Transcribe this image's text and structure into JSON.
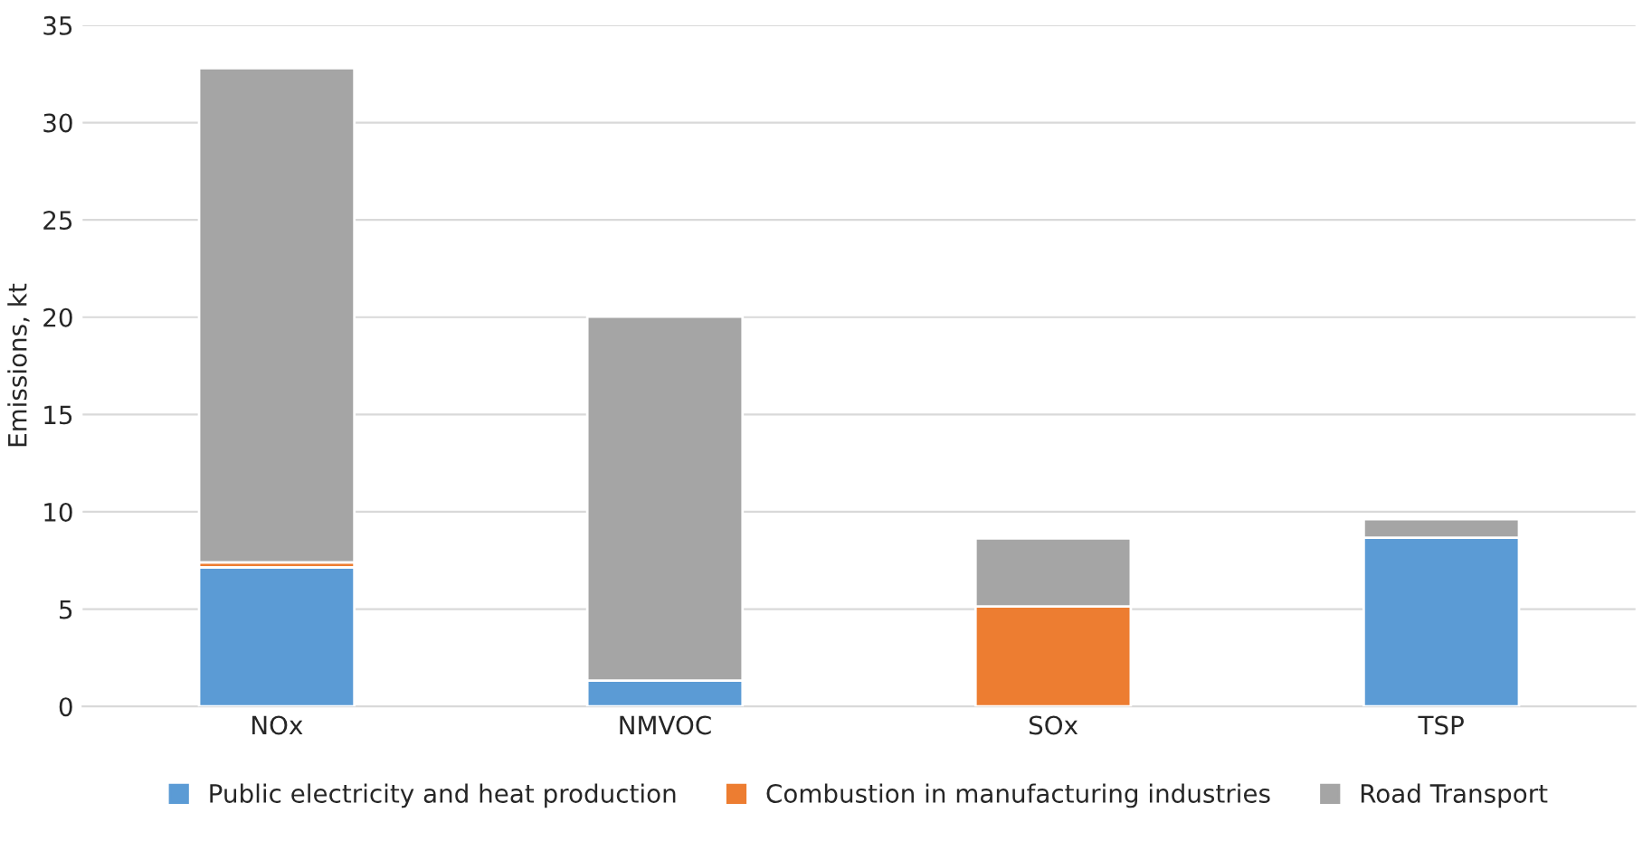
{
  "chart_data": {
    "type": "bar",
    "stacked": true,
    "ylabel": "Emissions, kt",
    "categories": [
      "NOx",
      "NMVOC",
      "SOx",
      "TSP"
    ],
    "series": [
      {
        "name": "Public electricity and heat production",
        "color": "#5b9bd5",
        "values": [
          7.15,
          1.33,
          0,
          8.67
        ]
      },
      {
        "name": "Combustion in manufacturing industries",
        "color": "#ed7d31",
        "values": [
          0.25,
          0,
          5.14,
          0
        ]
      },
      {
        "name": "Road Transport",
        "color": "#a5a5a5",
        "values": [
          25.4,
          18.7,
          3.5,
          0.95
        ]
      }
    ],
    "ylim": [
      0,
      35
    ],
    "yticks": [
      0,
      5,
      10,
      15,
      20,
      25,
      30,
      35
    ],
    "grid": "y",
    "legend": "bottom"
  }
}
